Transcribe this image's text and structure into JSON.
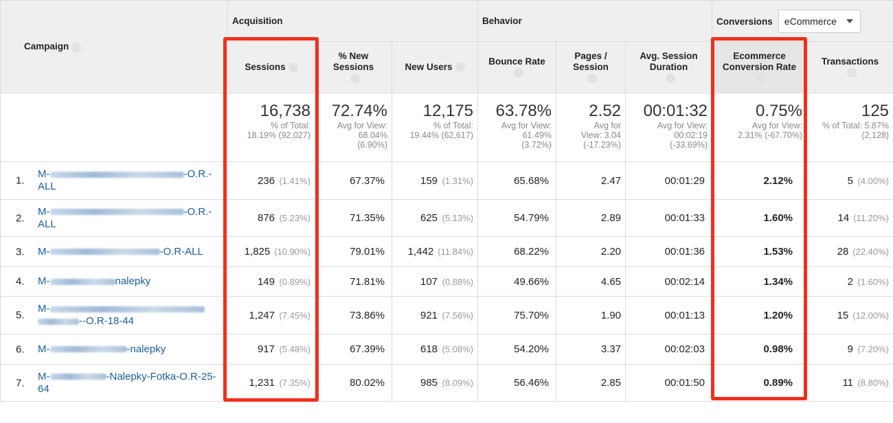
{
  "header": {
    "campaign": "Campaign",
    "groups": [
      "Acquisition",
      "Behavior",
      "Conversions"
    ],
    "dropdown": "eCommerce"
  },
  "columns": [
    "Sessions",
    "% New Sessions",
    "New Users",
    "Bounce Rate",
    "Pages / Session",
    "Avg. Session Duration",
    "Ecommerce Conversion Rate",
    "Transactions"
  ],
  "totals": [
    {
      "value": "16,738",
      "note": [
        "% of Total:",
        "18.19% (92,027)"
      ]
    },
    {
      "value": "72.74%",
      "note": [
        "Avg for View:",
        "68.04%",
        "(6.90%)"
      ]
    },
    {
      "value": "12,175",
      "note": [
        "% of Total:",
        "19.44% (62,617)"
      ]
    },
    {
      "value": "63.78%",
      "note": [
        "Avg for View:",
        "61.49%",
        "(3.72%)"
      ]
    },
    {
      "value": "2.52",
      "note": [
        "Avg for",
        "View: 3.04",
        "(-17.23%)"
      ]
    },
    {
      "value": "00:01:32",
      "note": [
        "Avg for View:",
        "00:02:19",
        "(-33.69%)"
      ]
    },
    {
      "value": "0.75%",
      "note": [
        "Avg for View:",
        "2.31% (-67.70%)"
      ]
    },
    {
      "value": "125",
      "note": [
        "% of Total: 5.87%",
        "(2,128)"
      ]
    }
  ],
  "rows": [
    {
      "index": "1.",
      "campaign_prefix": "M-",
      "campaign_suffix": "-O.R.-ALL",
      "cells": [
        [
          "236",
          "(1.41%)"
        ],
        [
          "67.37%"
        ],
        [
          "159",
          "(1.31%)"
        ],
        [
          "65.68%"
        ],
        [
          "2.47"
        ],
        [
          "00:01:29"
        ],
        [
          "2.12%"
        ],
        [
          "5",
          "(4.00%)"
        ]
      ]
    },
    {
      "index": "2.",
      "campaign_prefix": "M-",
      "campaign_suffix": "-O.R.-ALL",
      "cells": [
        [
          "876",
          "(5.23%)"
        ],
        [
          "71.35%"
        ],
        [
          "625",
          "(5.13%)"
        ],
        [
          "54.79%"
        ],
        [
          "2.89"
        ],
        [
          "00:01:33"
        ],
        [
          "1.60%"
        ],
        [
          "14",
          "(11.20%)"
        ]
      ]
    },
    {
      "index": "3.",
      "campaign_prefix": "M-",
      "campaign_suffix": "-O.R-ALL",
      "cells": [
        [
          "1,825",
          "(10.90%)"
        ],
        [
          "79.01%"
        ],
        [
          "1,442",
          "(11.84%)"
        ],
        [
          "68.22%"
        ],
        [
          "2.20"
        ],
        [
          "00:01:36"
        ],
        [
          "1.53%"
        ],
        [
          "28",
          "(22.40%)"
        ]
      ]
    },
    {
      "index": "4.",
      "campaign_prefix": "M-",
      "campaign_suffix": "nalepky",
      "cells": [
        [
          "149",
          "(0.89%)"
        ],
        [
          "71.81%"
        ],
        [
          "107",
          "(0.88%)"
        ],
        [
          "49.66%"
        ],
        [
          "4.65"
        ],
        [
          "00:02:14"
        ],
        [
          "1.34%"
        ],
        [
          "2",
          "(1.60%)"
        ]
      ]
    },
    {
      "index": "5.",
      "campaign_prefix": "M-",
      "campaign_suffix": "--O.R-18-44",
      "cells": [
        [
          "1,247",
          "(7.45%)"
        ],
        [
          "73.86%"
        ],
        [
          "921",
          "(7.56%)"
        ],
        [
          "75.70%"
        ],
        [
          "1.90"
        ],
        [
          "00:01:13"
        ],
        [
          "1.20%"
        ],
        [
          "15",
          "(12.00%)"
        ]
      ]
    },
    {
      "index": "6.",
      "campaign_prefix": "M-",
      "campaign_suffix": "-nalepky",
      "cells": [
        [
          "917",
          "(5.48%)"
        ],
        [
          "67.39%"
        ],
        [
          "618",
          "(5.08%)"
        ],
        [
          "54.20%"
        ],
        [
          "3.37"
        ],
        [
          "00:02:03"
        ],
        [
          "0.98%"
        ],
        [
          "9",
          "(7.20%)"
        ]
      ]
    },
    {
      "index": "7.",
      "campaign_prefix": "M-",
      "campaign_suffix": "-Nalepky-Fotka-O.R-25-64",
      "cells": [
        [
          "1,231",
          "(7.35%)"
        ],
        [
          "80.02%"
        ],
        [
          "985",
          "(8.09%)"
        ],
        [
          "56.46%"
        ],
        [
          "2.85"
        ],
        [
          "00:01:50"
        ],
        [
          "0.89%"
        ],
        [
          "11",
          "(8.80%)"
        ]
      ]
    }
  ]
}
